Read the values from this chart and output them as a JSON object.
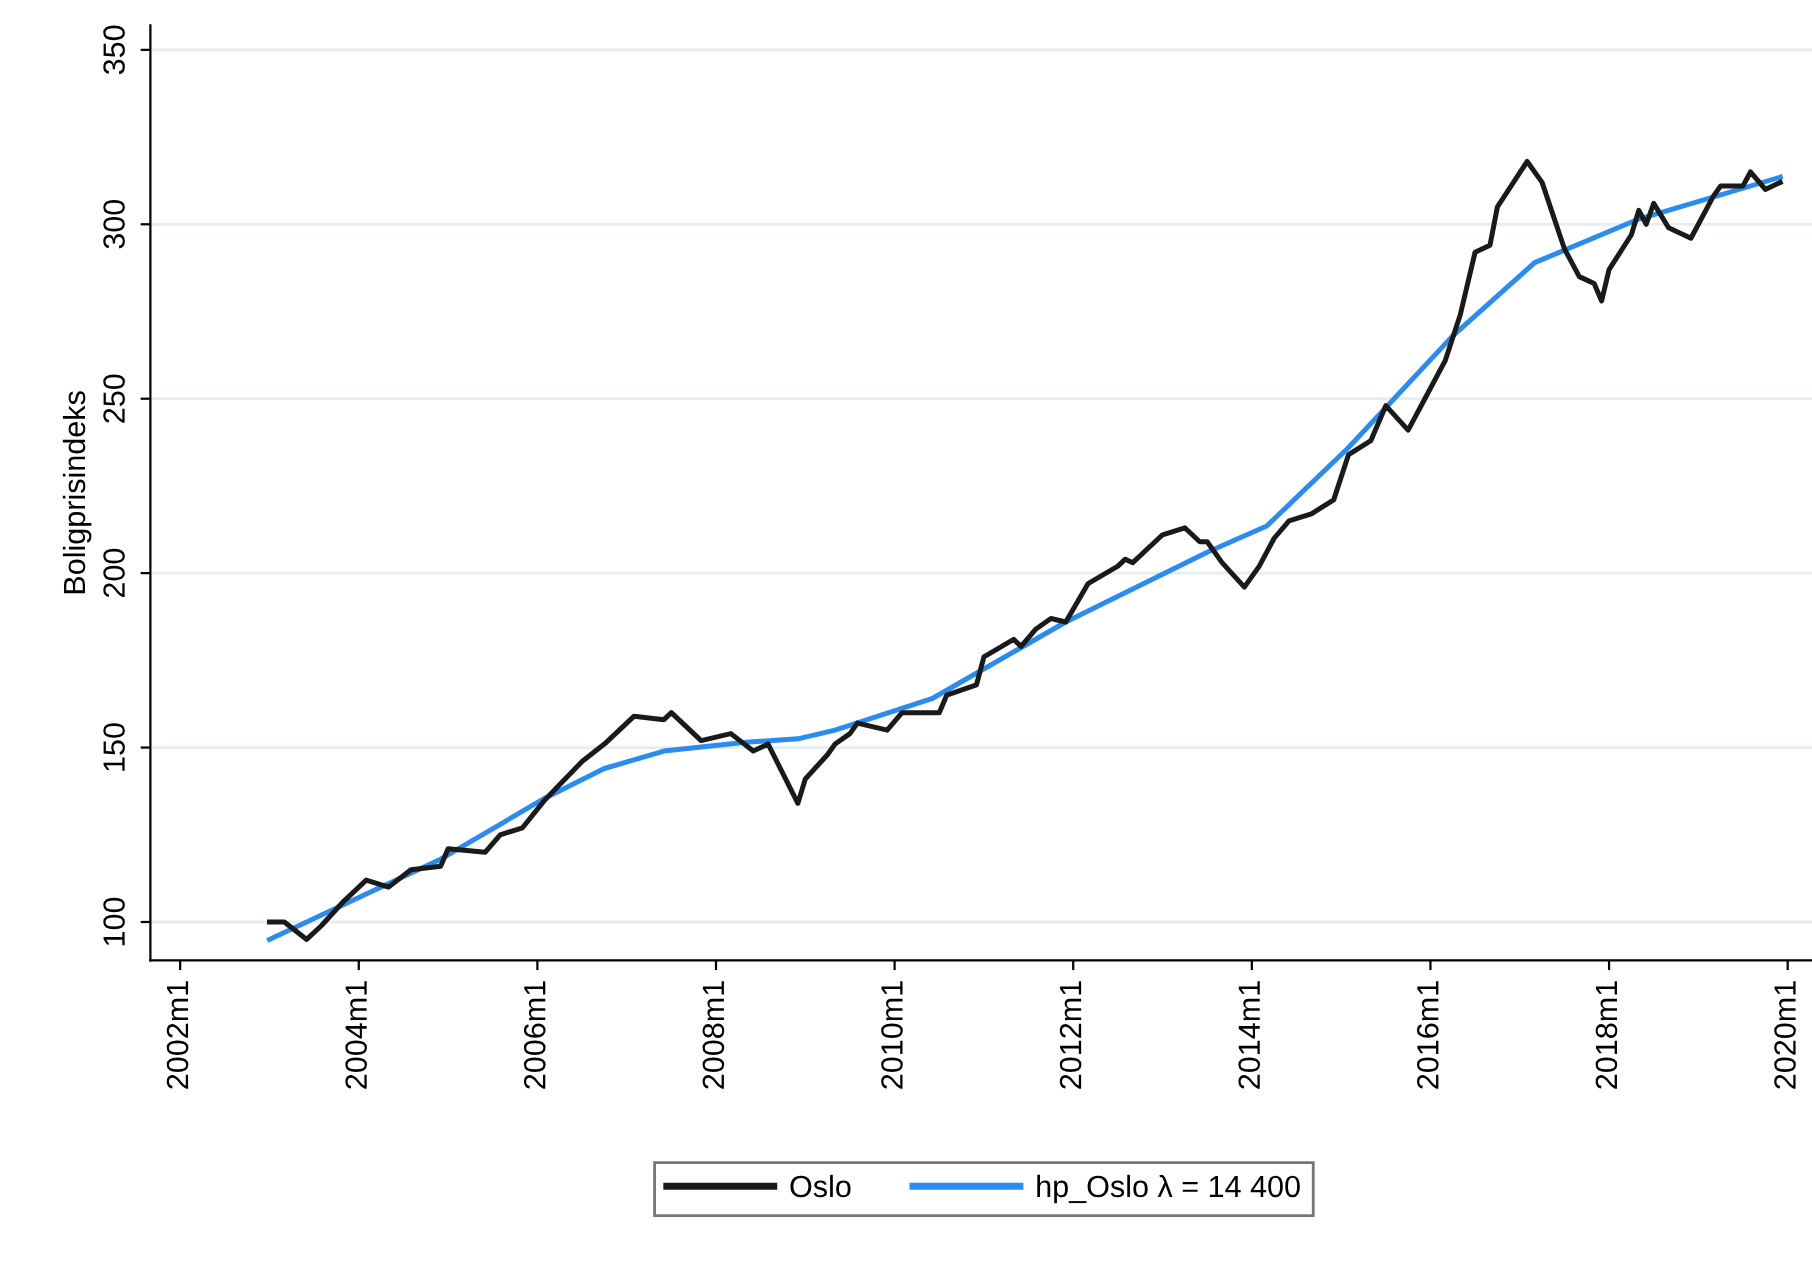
{
  "chart_data": {
    "type": "line",
    "ylabel": "Boligprisindeks",
    "xlim": [
      "2001-09",
      "2020-05"
    ],
    "ylim": [
      89,
      357
    ],
    "xticks": [
      {
        "value": "2002-01",
        "label": "2002m1"
      },
      {
        "value": "2004-01",
        "label": "2004m1"
      },
      {
        "value": "2006-01",
        "label": "2006m1"
      },
      {
        "value": "2008-01",
        "label": "2008m1"
      },
      {
        "value": "2010-01",
        "label": "2010m1"
      },
      {
        "value": "2012-01",
        "label": "2012m1"
      },
      {
        "value": "2014-01",
        "label": "2014m1"
      },
      {
        "value": "2016-01",
        "label": "2016m1"
      },
      {
        "value": "2018-01",
        "label": "2018m1"
      },
      {
        "value": "2020-01",
        "label": "2020m1"
      }
    ],
    "yticks": [
      100,
      150,
      200,
      250,
      300,
      350
    ],
    "grid": "y",
    "legend": "bottom",
    "line_style": "solid",
    "marker": "none",
    "series": [
      {
        "name": "Oslo",
        "color": "#1a1a1a",
        "x": [
          "2003-01",
          "2003-03",
          "2003-06",
          "2003-08",
          "2003-11",
          "2004-02",
          "2004-05",
          "2004-08",
          "2004-12",
          "2005-01",
          "2005-06",
          "2005-08",
          "2005-11",
          "2006-02",
          "2006-07",
          "2006-10",
          "2007-02",
          "2007-06",
          "2007-07",
          "2007-11",
          "2008-03",
          "2008-06",
          "2008-08",
          "2008-12",
          "2009-01",
          "2009-04",
          "2009-05",
          "2009-07",
          "2009-08",
          "2009-12",
          "2010-02",
          "2010-07",
          "2010-08",
          "2010-12",
          "2011-01",
          "2011-05",
          "2011-06",
          "2011-08",
          "2011-10",
          "2011-12",
          "2012-03",
          "2012-07",
          "2012-08",
          "2012-09",
          "2013-01",
          "2013-04",
          "2013-06",
          "2013-07",
          "2013-09",
          "2013-12",
          "2014-02",
          "2014-04",
          "2014-06",
          "2014-09",
          "2014-12",
          "2015-02",
          "2015-05",
          "2015-07",
          "2015-10",
          "2015-12",
          "2016-03",
          "2016-05",
          "2016-07",
          "2016-09",
          "2016-10",
          "2017-02",
          "2017-04",
          "2017-07",
          "2017-09",
          "2017-11",
          "2017-12",
          "2018-01",
          "2018-04",
          "2018-05",
          "2018-06",
          "2018-07",
          "2018-09",
          "2018-12",
          "2019-03",
          "2019-04",
          "2019-07",
          "2019-08",
          "2019-10",
          "2019-12"
        ],
        "values": [
          100,
          100,
          95,
          99,
          106,
          112,
          110,
          115,
          116,
          121,
          120,
          125,
          127,
          135,
          146,
          151,
          159,
          158,
          160,
          152,
          154,
          149,
          151,
          134,
          141,
          148,
          151,
          154,
          157,
          155,
          160,
          160,
          165,
          168,
          176,
          181,
          179,
          184,
          187,
          186,
          197,
          202,
          204,
          203,
          211,
          213,
          209,
          209,
          203,
          196,
          202,
          210,
          215,
          217,
          221,
          234,
          238,
          248,
          241,
          249,
          261,
          274,
          292,
          294,
          305,
          318,
          312,
          293,
          285,
          283,
          278,
          287,
          297,
          304,
          300,
          306,
          299,
          296,
          308,
          311,
          311,
          315,
          310,
          312
        ]
      },
      {
        "name": "hp_Oslo λ = 14 400",
        "color": "#2a8cf0",
        "x": [
          "2003-01",
          "2004-01",
          "2004-12",
          "2006-02",
          "2006-10",
          "2007-06",
          "2008-05",
          "2008-12",
          "2009-05",
          "2010-06",
          "2011-12",
          "2013-07",
          "2014-03",
          "2015-02",
          "2016-04",
          "2017-03",
          "2018-05",
          "2019-12"
        ],
        "values": [
          95,
          107,
          118,
          135.5,
          144,
          149,
          151.5,
          152.5,
          155,
          164,
          186,
          206,
          213.5,
          236,
          268,
          289,
          301.5,
          313.5
        ]
      }
    ]
  }
}
